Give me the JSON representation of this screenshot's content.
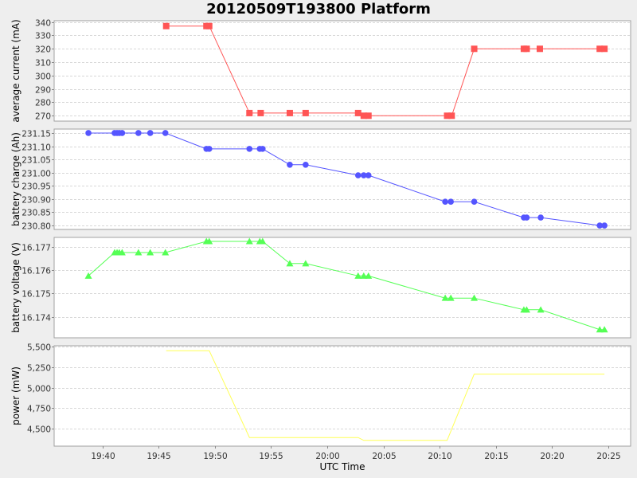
{
  "title": "20120509T193800 Platform",
  "x_axis": {
    "label": "UTC Time",
    "ticks": [
      "19:40",
      "19:45",
      "19:50",
      "19:55",
      "20:00",
      "20:05",
      "20:10",
      "20:15",
      "20:20",
      "20:25"
    ],
    "tick_minutes": [
      1180,
      1185,
      1190,
      1195,
      1200,
      1205,
      1210,
      1215,
      1220,
      1225
    ],
    "range_minutes": [
      1175.7,
      1227.0
    ]
  },
  "chart_data": [
    {
      "type": "line",
      "title": "20120509T193800 Platform",
      "ylabel": "average current (mA)",
      "xlabel": "UTC Time",
      "color": "#ff5555",
      "marker": "square",
      "ylim": [
        266,
        341
      ],
      "yticks": [
        270,
        280,
        290,
        300,
        310,
        320,
        330,
        340
      ],
      "ytick_labels": [
        "270",
        "280",
        "290",
        "300",
        "310",
        "320",
        "330",
        "340"
      ],
      "x": [
        "19:45:40",
        "19:49:15",
        "19:49:30",
        "19:53:05",
        "19:54:05",
        "19:56:40",
        "19:58:05",
        "20:02:45",
        "20:03:15",
        "20:03:40",
        "20:10:40",
        "20:11:05",
        "20:13:05",
        "20:17:30",
        "20:17:45",
        "20:18:55",
        "20:24:15",
        "20:24:40"
      ],
      "x_minutes": [
        1185.67,
        1189.25,
        1189.5,
        1193.08,
        1194.08,
        1196.67,
        1198.08,
        1202.75,
        1203.25,
        1203.67,
        1210.67,
        1211.08,
        1213.08,
        1217.5,
        1217.75,
        1218.92,
        1224.25,
        1224.67
      ],
      "values": [
        337,
        337,
        337,
        272,
        272,
        272,
        272,
        272,
        270,
        270,
        270,
        270,
        320,
        320,
        320,
        320,
        320,
        320
      ],
      "grid": true
    },
    {
      "type": "line",
      "ylabel": "battery charge (Ah)",
      "xlabel": "UTC Time",
      "color": "#5555ff",
      "marker": "circle",
      "ylim": [
        230.785,
        231.165
      ],
      "yticks": [
        230.8,
        230.85,
        230.9,
        230.95,
        231.0,
        231.05,
        231.1,
        231.15
      ],
      "ytick_labels": [
        "230.80",
        "230.85",
        "230.90",
        "230.95",
        "231.00",
        "231.05",
        "231.10",
        "231.15"
      ],
      "x_minutes": [
        1178.75,
        1181.08,
        1181.3,
        1181.5,
        1181.75,
        1183.2,
        1184.25,
        1185.6,
        1189.25,
        1189.5,
        1193.08,
        1194.0,
        1194.25,
        1196.67,
        1198.08,
        1202.75,
        1203.25,
        1203.67,
        1210.5,
        1211.0,
        1213.08,
        1217.5,
        1217.75,
        1219.0,
        1224.25,
        1224.67
      ],
      "values": [
        231.15,
        231.15,
        231.15,
        231.15,
        231.15,
        231.15,
        231.15,
        231.15,
        231.09,
        231.09,
        231.09,
        231.09,
        231.09,
        231.03,
        231.03,
        230.99,
        230.99,
        230.99,
        230.89,
        230.89,
        230.89,
        230.83,
        230.83,
        230.83,
        230.8,
        230.8
      ],
      "grid": true
    },
    {
      "type": "line",
      "ylabel": "battery voltage (V)",
      "xlabel": "UTC Time",
      "color": "#55ff55",
      "marker": "triangle",
      "ylim": [
        16.1731,
        16.1774
      ],
      "yticks": [
        16.174,
        16.175,
        16.176,
        16.177
      ],
      "ytick_labels": [
        "16.174",
        "16.175",
        "16.176",
        "16.177"
      ],
      "x_minutes": [
        1178.75,
        1181.08,
        1181.3,
        1181.5,
        1181.75,
        1183.2,
        1184.25,
        1185.6,
        1189.25,
        1189.5,
        1193.08,
        1194.0,
        1194.25,
        1196.67,
        1198.08,
        1202.75,
        1203.25,
        1203.67,
        1210.5,
        1211.0,
        1213.08,
        1217.5,
        1217.75,
        1219.0,
        1224.25,
        1224.67
      ],
      "values": [
        16.17575,
        16.17675,
        16.17675,
        16.17675,
        16.17675,
        16.17675,
        16.17675,
        16.17675,
        16.17723,
        16.17723,
        16.17723,
        16.17723,
        16.17723,
        16.17628,
        16.17628,
        16.17575,
        16.17575,
        16.17575,
        16.1748,
        16.1748,
        16.1748,
        16.1743,
        16.1743,
        16.1743,
        16.17345,
        16.17345
      ],
      "grid": true
    },
    {
      "type": "line",
      "ylabel": "power (mW)",
      "xlabel": "UTC Time",
      "color": "#ffff55",
      "marker": "none",
      "ylim": [
        4290,
        5510
      ],
      "yticks": [
        4500,
        4750,
        5000,
        5250,
        5500
      ],
      "ytick_labels": [
        "4,500",
        "4,750",
        "5,000",
        "5,250",
        "5,500"
      ],
      "x_minutes": [
        1185.67,
        1189.5,
        1193.08,
        1202.75,
        1203.25,
        1210.67,
        1213.08,
        1224.67
      ],
      "values": [
        5450,
        5450,
        4395,
        4395,
        4360,
        4360,
        5165,
        5165
      ],
      "grid": true
    }
  ]
}
